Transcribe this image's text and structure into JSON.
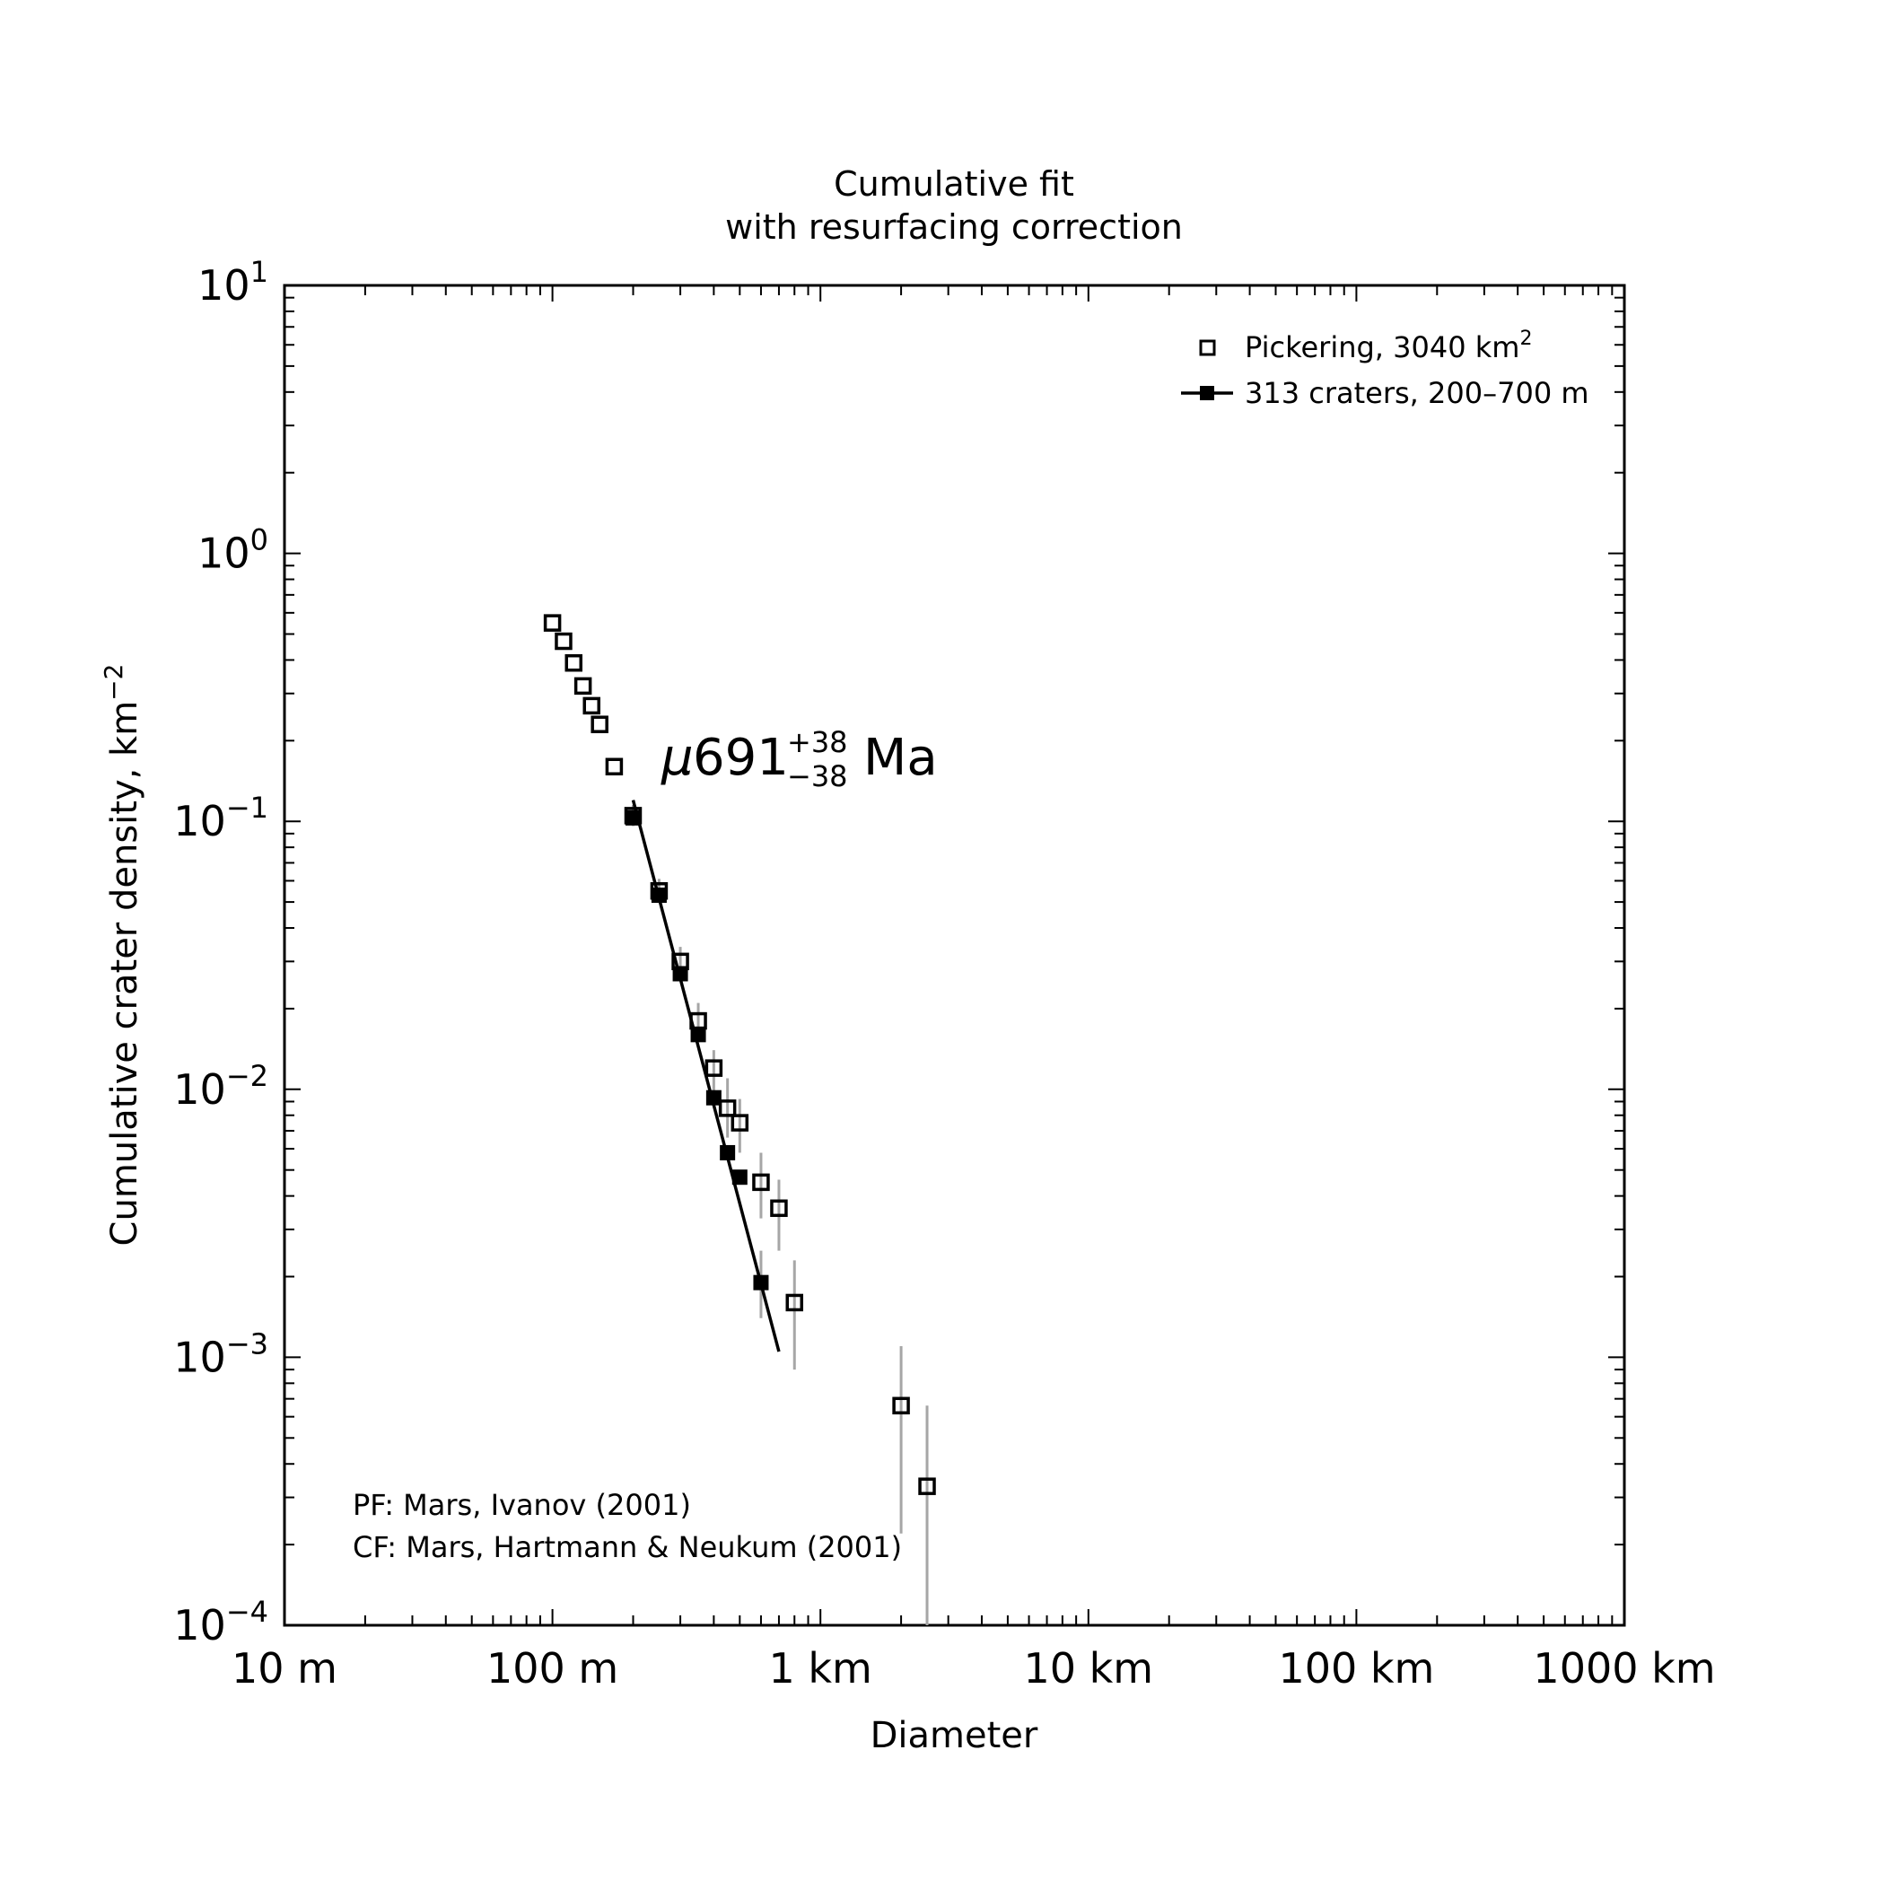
{
  "chart_data": {
    "type": "scatter",
    "title": [
      "Cumulative fit",
      "with resurfacing correction"
    ],
    "xlabel": "Diameter",
    "ylabel": "Cumulative crater density, km",
    "ylabel_exponent": "−2",
    "x_scale": "log",
    "y_scale": "log",
    "xlim_km": [
      0.01,
      1000
    ],
    "ylim": [
      0.0001,
      10
    ],
    "x_ticks": [
      {
        "value_km": 0.01,
        "label": "10 m"
      },
      {
        "value_km": 0.1,
        "label": "100 m"
      },
      {
        "value_km": 1,
        "label": "1 km"
      },
      {
        "value_km": 10,
        "label": "10 km"
      },
      {
        "value_km": 100,
        "label": "100 km"
      },
      {
        "value_km": 1000,
        "label": "1000 km"
      }
    ],
    "y_ticks": [
      {
        "value": 10,
        "base": "10",
        "exp": "1"
      },
      {
        "value": 1,
        "base": "10",
        "exp": "0"
      },
      {
        "value": 0.1,
        "base": "10",
        "exp": "−1"
      },
      {
        "value": 0.01,
        "base": "10",
        "exp": "−2"
      },
      {
        "value": 0.001,
        "base": "10",
        "exp": "−3"
      },
      {
        "value": 0.0001,
        "base": "10",
        "exp": "−4"
      }
    ],
    "grid": false,
    "legend_position": "top-right",
    "series": [
      {
        "name": "Pickering, 3040 km",
        "name_superscript": "2",
        "marker": "open-square",
        "points": [
          {
            "x_km": 0.1,
            "y": 0.55
          },
          {
            "x_km": 0.11,
            "y": 0.47
          },
          {
            "x_km": 0.12,
            "y": 0.39
          },
          {
            "x_km": 0.13,
            "y": 0.32
          },
          {
            "x_km": 0.14,
            "y": 0.27
          },
          {
            "x_km": 0.15,
            "y": 0.23
          },
          {
            "x_km": 0.17,
            "y": 0.16
          },
          {
            "x_km": 0.2,
            "y": 0.105,
            "err": [
              0.096,
              0.115
            ]
          },
          {
            "x_km": 0.25,
            "y": 0.055,
            "err": [
              0.05,
              0.061
            ]
          },
          {
            "x_km": 0.3,
            "y": 0.03,
            "err": [
              0.026,
              0.034
            ]
          },
          {
            "x_km": 0.35,
            "y": 0.018,
            "err": [
              0.015,
              0.021
            ]
          },
          {
            "x_km": 0.4,
            "y": 0.012,
            "err": [
              0.0097,
              0.014
            ]
          },
          {
            "x_km": 0.45,
            "y": 0.0085,
            "err": [
              0.0066,
              0.011
            ]
          },
          {
            "x_km": 0.5,
            "y": 0.0075,
            "err": [
              0.0058,
              0.0092
            ]
          },
          {
            "x_km": 0.6,
            "y": 0.0045,
            "err": [
              0.0033,
              0.0058
            ]
          },
          {
            "x_km": 0.7,
            "y": 0.0036,
            "err": [
              0.0025,
              0.0046
            ]
          },
          {
            "x_km": 0.8,
            "y": 0.0016,
            "err": [
              0.0009,
              0.0023
            ]
          },
          {
            "x_km": 2.0,
            "y": 0.00066,
            "err": [
              0.00022,
              0.0011
            ]
          },
          {
            "x_km": 2.5,
            "y": 0.00033,
            "err": [
              0.0001,
              0.00066
            ]
          }
        ]
      },
      {
        "name": "313 craters, 200–700 m",
        "marker": "filled-square",
        "points": [
          {
            "x_km": 0.2,
            "y": 0.103
          },
          {
            "x_km": 0.25,
            "y": 0.053
          },
          {
            "x_km": 0.3,
            "y": 0.027
          },
          {
            "x_km": 0.35,
            "y": 0.016
          },
          {
            "x_km": 0.4,
            "y": 0.0093
          },
          {
            "x_km": 0.45,
            "y": 0.0058
          },
          {
            "x_km": 0.5,
            "y": 0.0047
          },
          {
            "x_km": 0.6,
            "y": 0.0019,
            "err": [
              0.0014,
              0.0025
            ]
          }
        ],
        "fit_line": [
          {
            "x_km": 0.2,
            "y": 0.12
          },
          {
            "x_km": 0.7,
            "y": 0.00105
          }
        ]
      }
    ],
    "annotations": {
      "age": {
        "prefix": "μ",
        "value": "691",
        "plus": "+38",
        "minus": "−38",
        "unit": "Ma"
      },
      "notes": [
        "PF: Mars, Ivanov (2001)",
        "CF: Mars, Hartmann & Neukum (2001)"
      ]
    },
    "colors": {
      "axis": "#000000",
      "error_bar": "#a6a6a6",
      "marker": "#000000"
    }
  }
}
